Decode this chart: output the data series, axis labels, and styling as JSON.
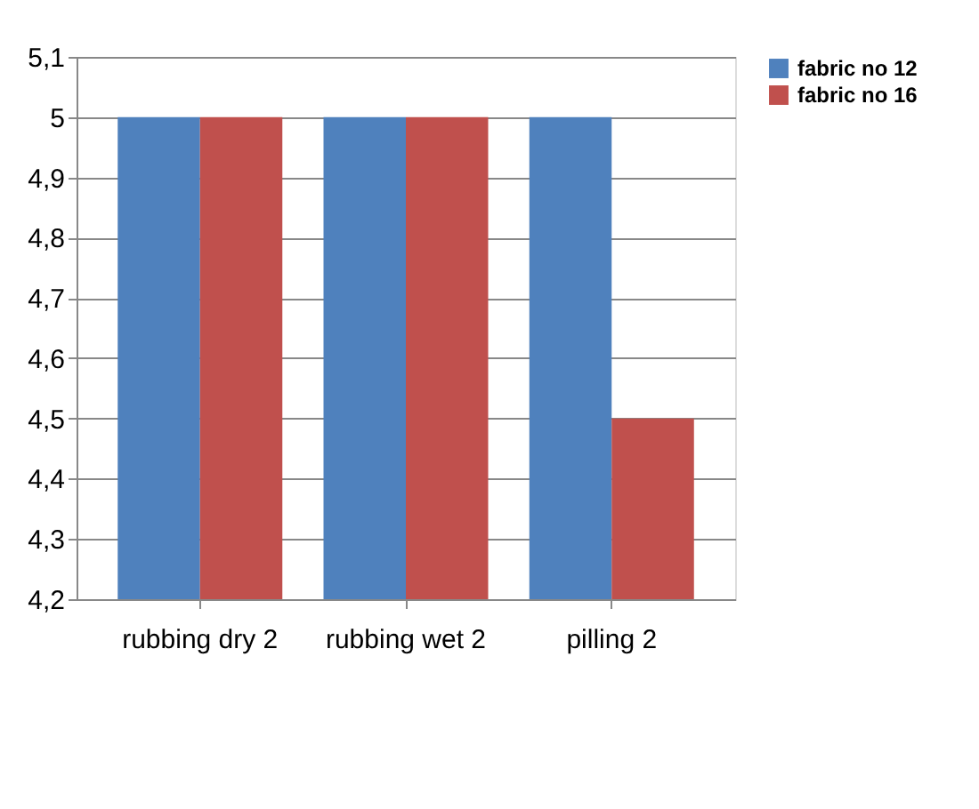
{
  "chart_data": {
    "type": "bar",
    "categories": [
      "rubbing dry 2",
      "rubbing wet 2",
      "pilling 2"
    ],
    "series": [
      {
        "name": "fabric no 12",
        "color": "#4f81bd",
        "values": [
          5,
          5,
          5
        ]
      },
      {
        "name": "fabric no 16",
        "color": "#c0504d",
        "values": [
          5,
          5,
          4.5
        ]
      }
    ],
    "ylim": [
      4.2,
      5.1
    ],
    "yticks": [
      {
        "value": 4.2,
        "label": "4,2"
      },
      {
        "value": 4.3,
        "label": "4,3"
      },
      {
        "value": 4.4,
        "label": "4,4"
      },
      {
        "value": 4.5,
        "label": "4,5"
      },
      {
        "value": 4.6,
        "label": "4,6"
      },
      {
        "value": 4.7,
        "label": "4,7"
      },
      {
        "value": 4.8,
        "label": "4,8"
      },
      {
        "value": 4.9,
        "label": "4,9"
      },
      5,
      {
        "value": 5.1,
        "label": "5,1"
      }
    ],
    "grid": "y",
    "legend": "top right"
  }
}
